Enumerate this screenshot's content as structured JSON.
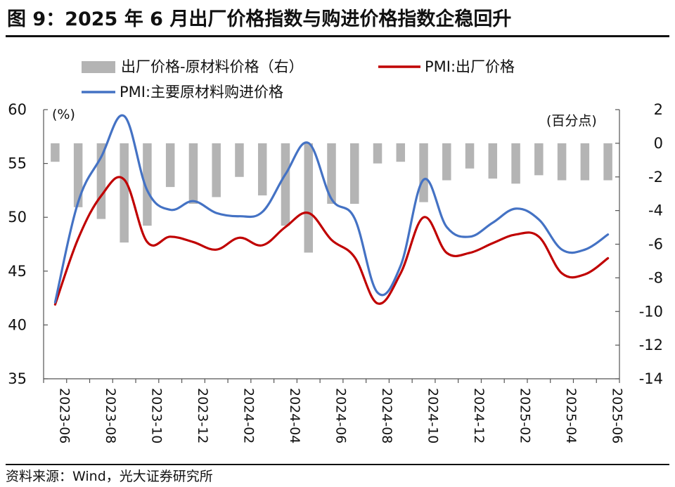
{
  "figure": {
    "title": "图 9：2025 年 6 月出厂价格指数与购进价格指数企稳回升",
    "source": "资料来源：Wind，光大证券研究所"
  },
  "chart_data": {
    "type": "bar+line",
    "categories": [
      "2023-06",
      "2023-07",
      "2023-08",
      "2023-09",
      "2023-10",
      "2023-11",
      "2023-12",
      "2024-01",
      "2024-02",
      "2024-03",
      "2024-04",
      "2024-05",
      "2024-06",
      "2024-07",
      "2024-08",
      "2024-09",
      "2024-10",
      "2024-11",
      "2024-12",
      "2025-01",
      "2025-02",
      "2025-03",
      "2025-04",
      "2025-05",
      "2025-06"
    ],
    "tick_labels": [
      "2023-06",
      "2023-08",
      "2023-10",
      "2023-12",
      "2024-02",
      "2024-04",
      "2024-06",
      "2024-08",
      "2024-10",
      "2024-12",
      "2025-02",
      "2025-04",
      "2025-06"
    ],
    "left_axis": {
      "unit": "(%)",
      "ylim": [
        35,
        60
      ],
      "ticks": [
        35,
        40,
        45,
        50,
        55,
        60
      ]
    },
    "right_axis": {
      "unit": "(百分点)",
      "ylim": [
        -14,
        2
      ],
      "ticks": [
        2,
        0,
        -2,
        -4,
        -6,
        -8,
        -10,
        -12,
        -14
      ]
    },
    "grid": false,
    "legend_position": "top",
    "series": [
      {
        "name": "出厂价格-原材料价格（右）",
        "type": "bar",
        "axis": "right",
        "color": "#b4b4b4",
        "values": [
          -1.1,
          -3.8,
          -4.5,
          -5.9,
          -4.9,
          -2.6,
          -3.6,
          -3.2,
          -2.0,
          -3.1,
          -4.9,
          -6.5,
          -3.6,
          -3.6,
          -1.2,
          -1.1,
          -3.5,
          -2.2,
          -1.5,
          -2.1,
          -2.4,
          -1.9,
          -2.2,
          -2.2,
          -2.2
        ]
      },
      {
        "name": "PMI:出厂价格",
        "type": "line",
        "axis": "left",
        "color": "#c00000",
        "values": [
          41.9,
          48.0,
          52.0,
          53.5,
          47.7,
          48.2,
          47.7,
          47.0,
          48.1,
          47.4,
          49.1,
          50.4,
          47.9,
          46.3,
          42.0,
          44.8,
          50.0,
          46.7,
          46.7,
          47.6,
          48.4,
          48.2,
          44.8,
          44.7,
          46.2
        ]
      },
      {
        "name": "PMI:主要原材料购进价格",
        "type": "line",
        "axis": "left",
        "color": "#4472c4",
        "values": [
          42.1,
          51.4,
          55.6,
          59.4,
          52.5,
          50.7,
          51.5,
          50.4,
          50.1,
          50.5,
          54.0,
          56.9,
          51.7,
          49.9,
          43.0,
          45.5,
          53.5,
          49.1,
          48.2,
          49.5,
          50.8,
          49.8,
          47.0,
          47.0,
          48.4
        ]
      }
    ]
  }
}
